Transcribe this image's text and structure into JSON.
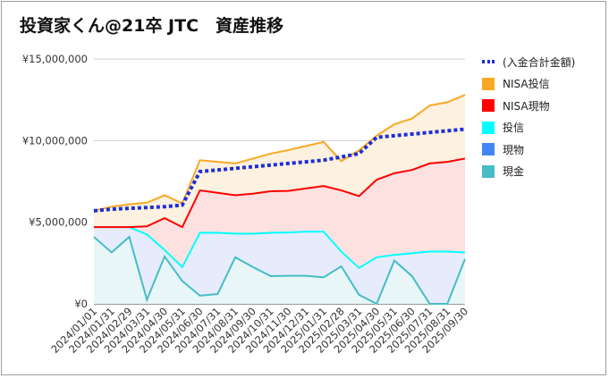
{
  "title": "投資家くん@21卒 JTC　資産推移",
  "chart_data": {
    "type": "area",
    "x": [
      "2024/01/01",
      "2024/01/31",
      "2024/02/29",
      "2024/03/31",
      "2024/04/30",
      "2024/05/31",
      "2024/06/30",
      "2024/07/31",
      "2024/08/31",
      "2024/09/30",
      "2024/10/31",
      "2024/11/30",
      "2024/12/31",
      "2025/01/31",
      "2025/02/28",
      "2025/03/31",
      "2025/04/30",
      "2025/05/31",
      "2025/06/30",
      "2025/07/31",
      "2025/08/31",
      "2025/09/30"
    ],
    "yticks": [
      "¥0",
      "¥5,000,000",
      "¥10,000,000",
      "¥15,000,000"
    ],
    "ylim": [
      0,
      15000000
    ],
    "stacked_series": [
      {
        "name": "現金",
        "color": "#46bdc6",
        "fill": "#e8f6f7",
        "values": [
          4100000,
          3150000,
          4100000,
          250000,
          2900000,
          1400000,
          500000,
          600000,
          2850000,
          2250000,
          1700000,
          1720000,
          1720000,
          1620000,
          2300000,
          550000,
          0,
          2650000,
          1700000,
          0,
          0,
          2750000
        ]
      },
      {
        "name": "現物",
        "color": "#4285f4",
        "fill": "#e5ebfb",
        "values": [
          0,
          0,
          0,
          0,
          0,
          0,
          0,
          0,
          0,
          0,
          0,
          0,
          0,
          0,
          0,
          0,
          0,
          0,
          0,
          0,
          0,
          0
        ]
      },
      {
        "name": "投信",
        "color": "#00ffff",
        "fill": "#e6ecfc",
        "values": [
          600000,
          1550000,
          600000,
          4000000,
          400000,
          850000,
          3850000,
          3750000,
          1450000,
          2050000,
          2650000,
          2650000,
          2700000,
          2800000,
          900000,
          1650000,
          2850000,
          350000,
          1400000,
          3200000,
          3200000,
          400000
        ]
      },
      {
        "name": "NISA現物",
        "color": "#ff0000",
        "fill": "#fde1e1",
        "values": [
          0,
          0,
          0,
          500000,
          1950000,
          2450000,
          2600000,
          2450000,
          2350000,
          2450000,
          2550000,
          2550000,
          2650000,
          2800000,
          3750000,
          4400000,
          4750000,
          5000000,
          5100000,
          5400000,
          5500000,
          5750000
        ]
      },
      {
        "name": "NISA投信",
        "color": "#f9a825",
        "fill": "#fdf1df",
        "values": [
          1000000,
          1250000,
          1400000,
          1450000,
          1400000,
          1450000,
          1850000,
          1900000,
          1950000,
          2150000,
          2300000,
          2500000,
          2600000,
          2700000,
          1800000,
          2800000,
          2700000,
          3000000,
          3150000,
          3550000,
          3650000,
          3900000
        ]
      }
    ],
    "line_series": [
      {
        "name": "(入金合計金額)",
        "color": "#1d2fd6",
        "style": "dotted",
        "values": [
          5700000,
          5800000,
          5850000,
          5900000,
          5950000,
          6050000,
          8100000,
          8200000,
          8300000,
          8400000,
          8500000,
          8600000,
          8700000,
          8800000,
          9000000,
          9200000,
          10200000,
          10300000,
          10400000,
          10500000,
          10600000,
          10700000
        ]
      }
    ],
    "legend": [
      "(入金合計金額)",
      "NISA投信",
      "NISA現物",
      "投信",
      "現物",
      "現金"
    ],
    "legend_position": "right",
    "grid": true
  }
}
